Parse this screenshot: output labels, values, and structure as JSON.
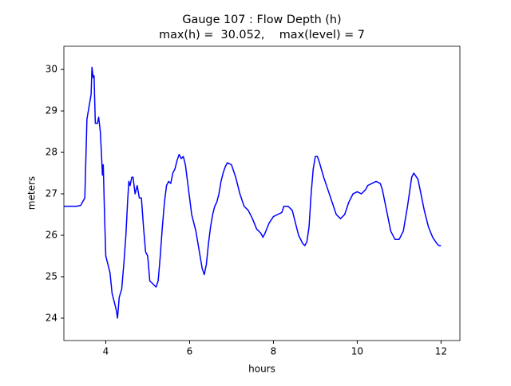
{
  "chart_data": {
    "type": "line",
    "title": "Gauge 107 : Flow Depth (h)",
    "subtitle": "max(h) =  30.052,    max(level) = 7",
    "xlabel": "hours",
    "ylabel": "meters",
    "xlim": [
      3,
      12.45
    ],
    "ylim": [
      23.46,
      30.56
    ],
    "xticks": [
      4,
      6,
      8,
      10,
      12
    ],
    "yticks": [
      24,
      25,
      26,
      27,
      28,
      29,
      30
    ],
    "x": [
      3.0,
      3.3,
      3.4,
      3.5,
      3.55,
      3.6,
      3.65,
      3.67,
      3.7,
      3.72,
      3.75,
      3.8,
      3.83,
      3.87,
      3.9,
      3.92,
      3.94,
      3.97,
      4.0,
      4.05,
      4.1,
      4.15,
      4.2,
      4.25,
      4.28,
      4.32,
      4.38,
      4.43,
      4.48,
      4.52,
      4.55,
      4.58,
      4.62,
      4.65,
      4.7,
      4.75,
      4.8,
      4.85,
      4.9,
      4.95,
      5.0,
      5.05,
      5.1,
      5.15,
      5.2,
      5.25,
      5.3,
      5.35,
      5.4,
      5.45,
      5.5,
      5.55,
      5.6,
      5.65,
      5.7,
      5.75,
      5.8,
      5.85,
      5.9,
      5.95,
      6.0,
      6.05,
      6.1,
      6.15,
      6.2,
      6.25,
      6.3,
      6.35,
      6.4,
      6.45,
      6.5,
      6.55,
      6.6,
      6.65,
      6.7,
      6.75,
      6.8,
      6.85,
      6.9,
      7.0,
      7.1,
      7.2,
      7.3,
      7.4,
      7.5,
      7.6,
      7.7,
      7.75,
      7.8,
      7.9,
      8.0,
      8.1,
      8.2,
      8.25,
      8.35,
      8.45,
      8.5,
      8.6,
      8.7,
      8.75,
      8.8,
      8.85,
      8.9,
      8.95,
      9.0,
      9.05,
      9.1,
      9.2,
      9.3,
      9.4,
      9.5,
      9.6,
      9.7,
      9.8,
      9.9,
      10.0,
      10.1,
      10.2,
      10.25,
      10.35,
      10.45,
      10.55,
      10.6,
      10.7,
      10.8,
      10.9,
      11.0,
      11.1,
      11.2,
      11.3,
      11.35,
      11.45,
      11.5,
      11.6,
      11.7,
      11.8,
      11.9,
      11.95,
      12.0
    ],
    "series": [
      {
        "name": "h",
        "color": "#0000ff",
        "values": [
          26.7,
          26.7,
          26.72,
          26.9,
          28.8,
          29.1,
          29.4,
          30.05,
          29.8,
          29.85,
          28.7,
          28.7,
          28.85,
          28.5,
          27.9,
          27.45,
          27.7,
          26.5,
          25.5,
          25.3,
          25.1,
          24.6,
          24.4,
          24.2,
          24.0,
          24.5,
          24.7,
          25.3,
          26.0,
          26.8,
          27.3,
          27.2,
          27.4,
          27.4,
          27.0,
          27.2,
          26.9,
          26.9,
          26.2,
          25.6,
          25.5,
          24.9,
          24.85,
          24.8,
          24.75,
          24.9,
          25.5,
          26.2,
          26.8,
          27.2,
          27.3,
          27.25,
          27.5,
          27.6,
          27.8,
          27.95,
          27.85,
          27.9,
          27.7,
          27.3,
          26.9,
          26.5,
          26.3,
          26.1,
          25.8,
          25.5,
          25.2,
          25.05,
          25.3,
          25.8,
          26.2,
          26.5,
          26.7,
          26.8,
          27.0,
          27.3,
          27.5,
          27.65,
          27.75,
          27.7,
          27.4,
          27.0,
          26.7,
          26.6,
          26.4,
          26.15,
          26.05,
          25.95,
          26.05,
          26.3,
          26.45,
          26.5,
          26.55,
          26.7,
          26.7,
          26.6,
          26.4,
          26.0,
          25.8,
          25.75,
          25.85,
          26.2,
          27.0,
          27.6,
          27.9,
          27.9,
          27.75,
          27.4,
          27.1,
          26.8,
          26.5,
          26.4,
          26.5,
          26.8,
          27.0,
          27.05,
          27.0,
          27.1,
          27.2,
          27.25,
          27.3,
          27.25,
          27.1,
          26.6,
          26.1,
          25.9,
          25.9,
          26.1,
          26.7,
          27.4,
          27.5,
          27.35,
          27.1,
          26.6,
          26.2,
          25.95,
          25.8,
          25.75,
          25.75
        ]
      }
    ]
  }
}
